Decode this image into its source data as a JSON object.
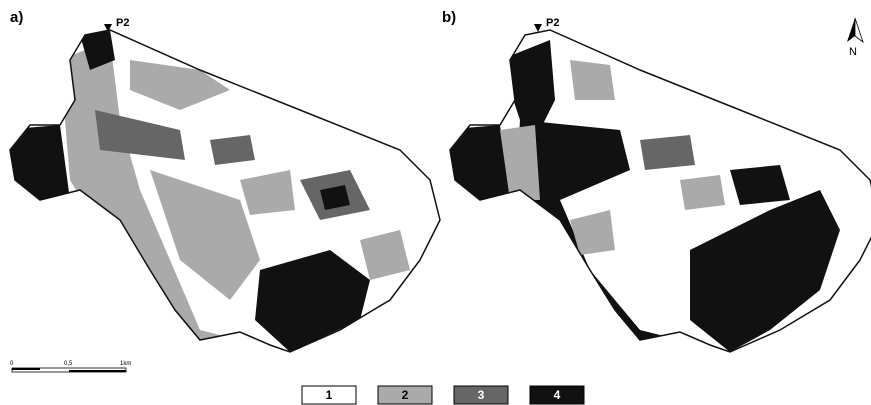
{
  "panels": [
    {
      "label": "a)",
      "point": "P2"
    },
    {
      "label": "b)",
      "point": "P2"
    }
  ],
  "north": "N",
  "scale": {
    "ticks": [
      "0",
      "0,5",
      "1km"
    ]
  },
  "legend": [
    "1",
    "2",
    "3",
    "4"
  ]
}
